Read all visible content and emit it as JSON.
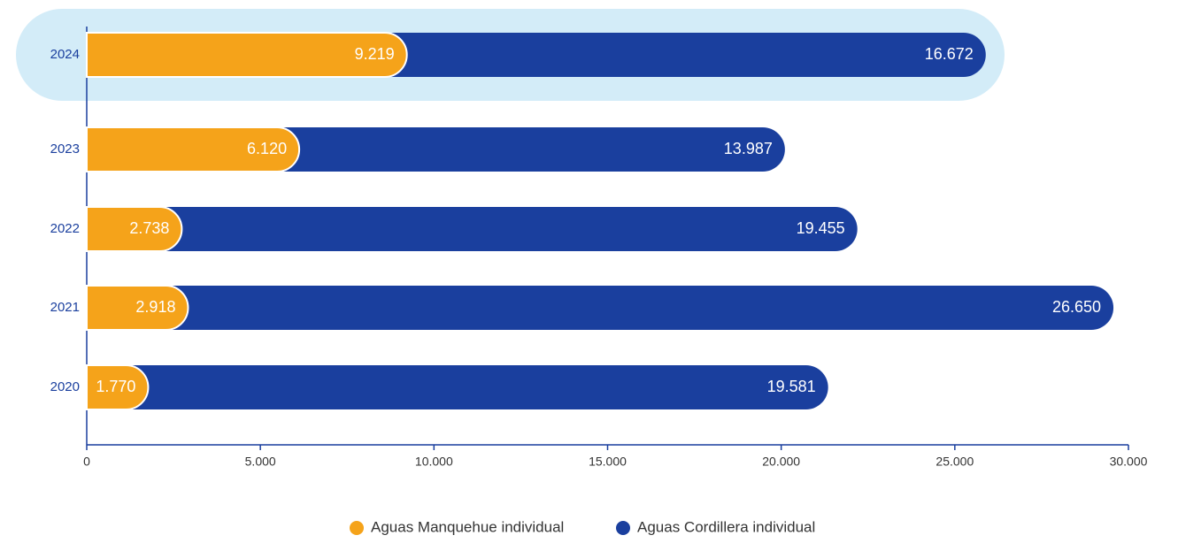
{
  "chart_data": {
    "type": "stacked-barh",
    "categories": [
      "2024",
      "2023",
      "2022",
      "2021",
      "2020"
    ],
    "series": [
      {
        "name": "Aguas Manquehue individual",
        "color": "#f5a31a",
        "values": [
          9219,
          6120,
          2738,
          2918,
          1770
        ],
        "value_labels": [
          "9.219",
          "6.120",
          "2.738",
          "2.918",
          "1.770"
        ]
      },
      {
        "name": "Aguas Cordillera individual",
        "color": "#1a3f9e",
        "values": [
          16672,
          13987,
          19455,
          26650,
          19581
        ],
        "value_labels": [
          "16.672",
          "13.987",
          "19.455",
          "26.650",
          "19.581"
        ]
      }
    ],
    "xlim": [
      0,
      30000
    ],
    "xticks": [
      0,
      {
        "value": 5000,
        "label": "5.000"
      },
      {
        "value": 10000,
        "label": "10.000"
      },
      {
        "value": 15000,
        "label": "15.000"
      },
      {
        "value": 20000,
        "label": "20.000"
      },
      {
        "value": 25000,
        "label": "25.000"
      },
      {
        "value": 30000,
        "label": "30.000"
      }
    ],
    "legend": "bottom"
  }
}
